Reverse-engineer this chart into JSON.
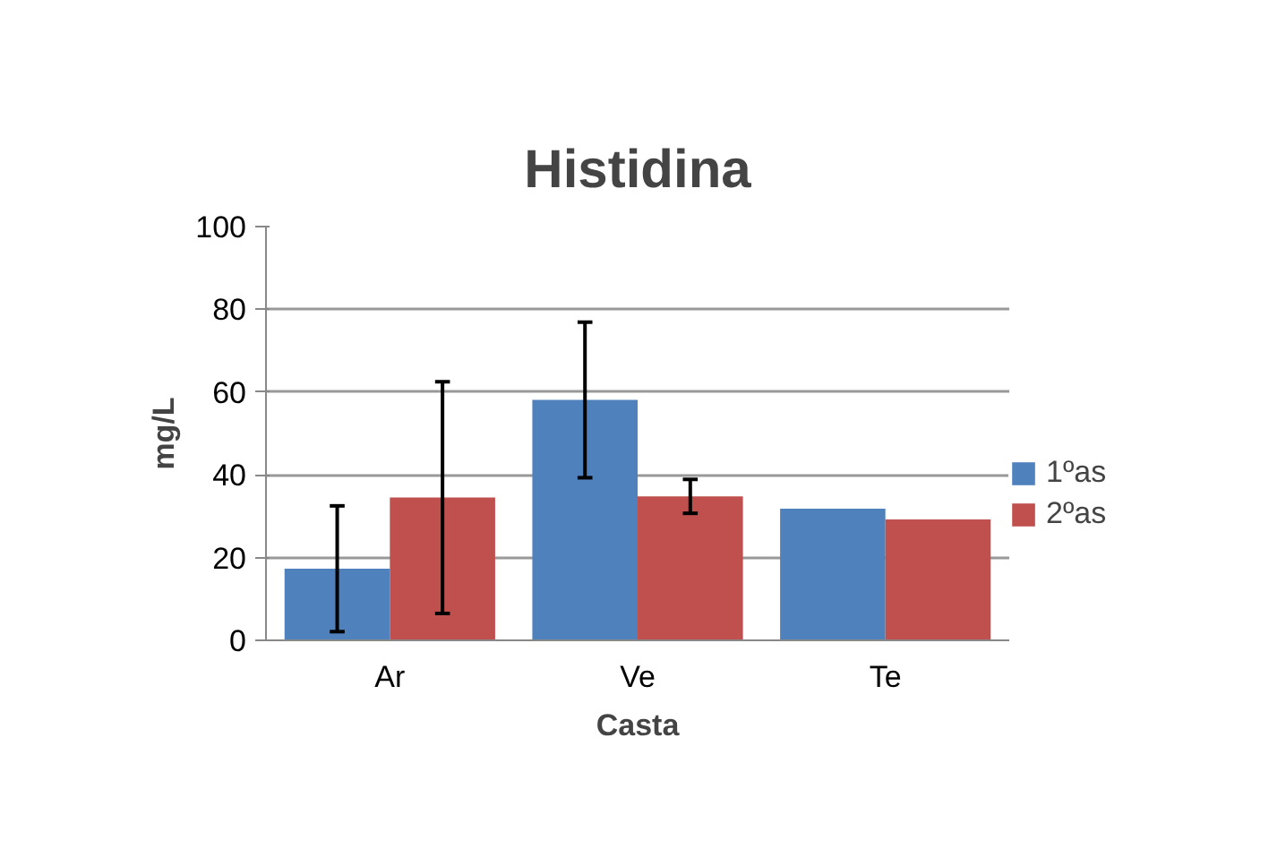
{
  "chart_data": {
    "type": "bar",
    "title": "Histidina",
    "xlabel": "Casta",
    "ylabel": "mg/L",
    "categories": [
      "Ar",
      "Ve",
      "Te"
    ],
    "series": [
      {
        "name": "1ºas",
        "color": "#4f81bd",
        "values": [
          17.3,
          58.1,
          31.8
        ],
        "errors": [
          15.2,
          18.8,
          null
        ]
      },
      {
        "name": "2ºas",
        "color": "#c0504d",
        "values": [
          34.5,
          34.8,
          29.2
        ],
        "errors": [
          28,
          4.1,
          null
        ]
      }
    ],
    "ylim": [
      0,
      100
    ],
    "yticks": [
      0,
      20,
      40,
      60,
      80,
      100
    ],
    "grid": "y",
    "legend": "right"
  }
}
